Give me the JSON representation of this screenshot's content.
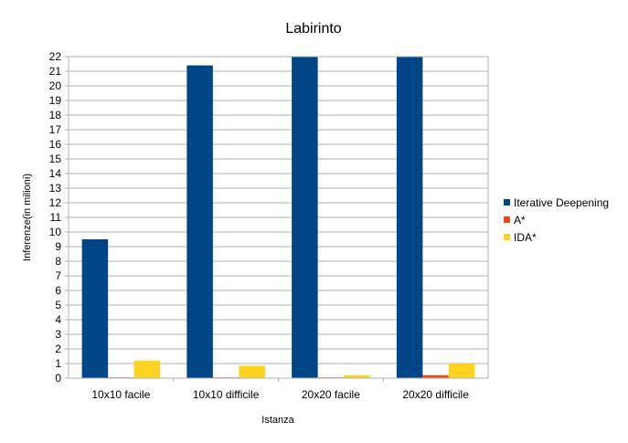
{
  "chart_data": {
    "type": "bar",
    "title": "Labirinto",
    "xlabel": "Istanza",
    "ylabel": "Inferenze(in milioni)",
    "ylim": [
      0,
      22
    ],
    "yticks": [
      0,
      1,
      2,
      3,
      4,
      5,
      6,
      7,
      8,
      9,
      10,
      11,
      12,
      13,
      14,
      15,
      16,
      17,
      18,
      19,
      20,
      21,
      22
    ],
    "grid": true,
    "legend": "right",
    "categories": [
      "10x10 facile",
      "10x10 difficile",
      "20x20 facile",
      "20x20 difficile"
    ],
    "series": [
      {
        "name": "Iterative Deepening",
        "color": "#004586",
        "values": [
          9.5,
          21.4,
          22,
          22
        ]
      },
      {
        "name": "A*",
        "color": "#ff420e",
        "values": [
          0.05,
          0.05,
          0.05,
          0.2
        ]
      },
      {
        "name": "IDA*",
        "color": "#ffd320",
        "values": [
          1.2,
          0.85,
          0.2,
          1.0
        ]
      }
    ]
  }
}
